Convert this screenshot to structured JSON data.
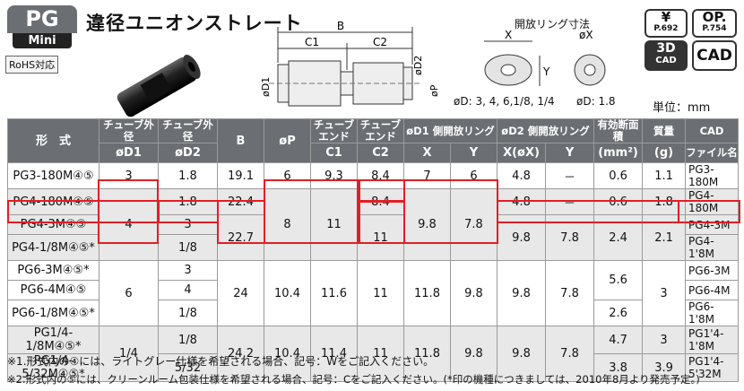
{
  "header": {
    "badge_top": "PG",
    "badge_bottom": "Mini",
    "rohs": "RoHS対応",
    "title": "違径ユニオンストレート",
    "unit": "単位：mm"
  },
  "icons": {
    "yen": "¥",
    "yen_page": "P.692",
    "op": "OP.",
    "op_page": "P.754",
    "cad3d_top": "3D",
    "cad3d_bottom": "CAD",
    "cad": "CAD"
  },
  "diagram": {
    "B": "B",
    "C1": "C1",
    "C2": "C2",
    "D1": "øD1",
    "D2": "øD2",
    "P": "øP",
    "ring_title": "開放リング寸法",
    "X": "X",
    "Y": "Y",
    "oX": "øX",
    "caption_left": "øD: 3, 4, 6,1/8, 1/4",
    "caption_right": "øD: 1.8"
  },
  "table": {
    "headers": {
      "model": "形　式",
      "tube_od1_a": "チューブ外径",
      "tube_od1_b": "øD1",
      "tube_od2_a": "チューブ外径",
      "tube_od2_b": "øD2",
      "B": "B",
      "P": "øP",
      "c1_a": "チューブエンド",
      "c1_b": "C1",
      "c2_a": "チューブエンド",
      "c2_b": "C2",
      "ring1": "øD1 側開放リング",
      "ring1_x": "X",
      "ring1_y": "Y",
      "ring2": "øD2 側開放リング",
      "ring2_x": "X(øX)",
      "ring2_y": "Y",
      "area_a": "有効断面積",
      "area_b": "(mm²)",
      "mass_a": "質量",
      "mass_b": "(g)",
      "cad_a": "CAD",
      "cad_b": "ファイル名"
    },
    "rows": [
      {
        "model": "PG3-180M④⑤",
        "d1": "3",
        "d2": "1.8",
        "B": "19.1",
        "P": "6",
        "C1": "9.3",
        "C2": "8.4",
        "X1": "7",
        "Y1": "6",
        "X2": "4.8",
        "Y2": "－",
        "area": "0.6",
        "mass": "1.1",
        "cad": "PG3-180M"
      },
      {
        "model": "PG4-180M④⑤",
        "d1": "4",
        "d2": "1.8",
        "B": "22.4",
        "P": "8",
        "C1": "11",
        "C2": "8.4",
        "X1": "9.8",
        "Y1": "7.8",
        "X2": "4.8",
        "Y2": "－",
        "area": "0.6",
        "mass": "1.8",
        "cad": "PG4-180M"
      },
      {
        "model": "PG4-3M④⑤",
        "d2": "3",
        "B": "22.7",
        "C2": "11",
        "X2": "9.8",
        "Y2": "7.8",
        "area": "2.4",
        "mass": "2.1",
        "cad": "PG4-3M"
      },
      {
        "model": "PG4-1/8M④⑤*",
        "d2": "1/8",
        "cad": "PG4-1'8M"
      },
      {
        "model": "PG6-3M④⑤*",
        "d1": "6",
        "d2": "3",
        "B": "24",
        "P": "10.4",
        "C1": "11.6",
        "C2": "11",
        "X1": "11.8",
        "Y1": "9.8",
        "X2": "9.8",
        "Y2": "7.8",
        "area": "5.6",
        "mass": "3",
        "cad": "PG6-3M"
      },
      {
        "model": "PG6-4M④⑤",
        "d2": "4",
        "cad": "PG6-4M"
      },
      {
        "model": "PG6-1/8M④⑤*",
        "d2": "1/8",
        "area": "2.6",
        "cad": "PG6-1'8M"
      },
      {
        "model": "PG1/4-1/8M④⑤*",
        "d1": "1/4",
        "d2": "1/8",
        "B": "24.2",
        "P": "10.4",
        "C1": "11.4",
        "C2": "11",
        "X1": "11.8",
        "Y1": "9.8",
        "X2": "9.8",
        "Y2": "7.8",
        "area": "4.7",
        "mass": "3",
        "cad": "PG1'4-1'8M"
      },
      {
        "model": "PG1/4-5/32M④⑤*",
        "d2": "5/32",
        "area": "3.8",
        "mass": "3.9",
        "cad": "PG1'4-5'32M"
      }
    ]
  },
  "notes": {
    "n1": "※1.形式内の④には、ライトグレー仕様を希望される場合、記号：Wをご記入ください。",
    "n2": "※2.形式内の⑤には、クリーンルーム包装仕様を希望される場合、記号：Cをご記入ください。(*印の機種につきましては、2010年8月より発売予定。)"
  }
}
